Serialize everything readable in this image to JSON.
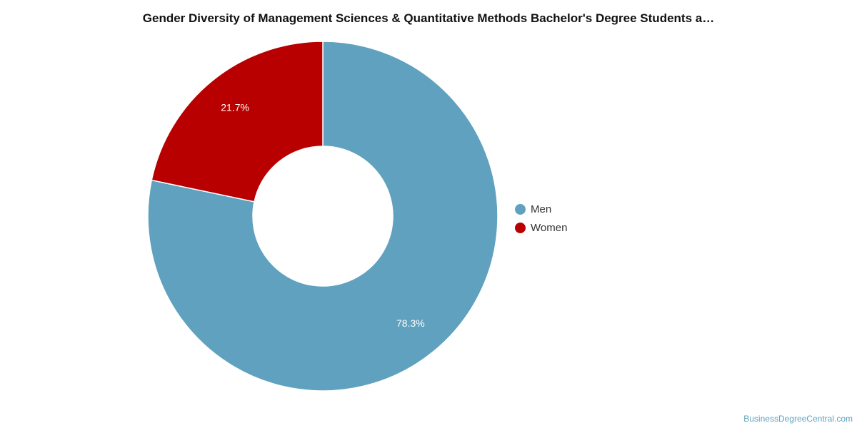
{
  "chart_data": {
    "type": "pie",
    "title": "Gender Diversity of Management Sciences & Quantitative Methods Bachelor's Degree Students a…",
    "categories": [
      "Men",
      "Women"
    ],
    "values": [
      78.3,
      21.7
    ],
    "labels": [
      "78.3%",
      "21.7%"
    ],
    "colors": [
      "#5fa1be",
      "#b80000"
    ],
    "donut": true,
    "legend": "right"
  },
  "credit": "BusinessDegreeCentral.com"
}
